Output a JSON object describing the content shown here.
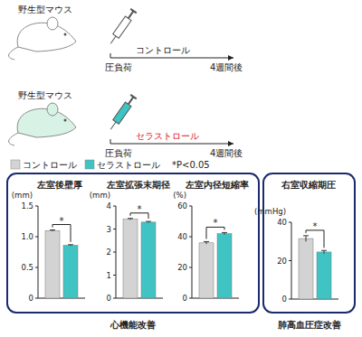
{
  "diagram": {
    "rows": [
      {
        "label": "野生型マウス",
        "treatment": "コントロール",
        "start": "圧負荷",
        "end": "4週間後",
        "color": "#222222"
      },
      {
        "label": "野生型マウス",
        "treatment": "セラストロール",
        "start": "圧負荷",
        "end": "4週間後",
        "color": "#e0201c"
      }
    ]
  },
  "note": "*P<0.05",
  "panels": [
    {
      "caption": "心機能改善"
    },
    {
      "caption": "肺高血圧症改善"
    }
  ],
  "chart_data": [
    {
      "type": "bar",
      "title": "左室後壁厚",
      "y_label": "(mm)",
      "annotation": "*",
      "categories": [
        null
      ],
      "series": [
        {
          "name": "コントロール",
          "color": "#d3d3d3",
          "values": [
            1.1
          ],
          "errors": [
            0.01
          ]
        },
        {
          "name": "セラストロール",
          "color": "#3fc3c3",
          "values": [
            0.86
          ],
          "errors": [
            0.01
          ]
        }
      ],
      "ylim": [
        0,
        1.5
      ],
      "yticks": [
        0,
        0.5,
        {
          "value": 1,
          "label": "1.0"
        },
        1.5
      ]
    },
    {
      "type": "bar",
      "title": "左室拡張末期径",
      "y_label": "(mm)",
      "annotation": "*",
      "categories": [
        null
      ],
      "series": [
        {
          "name": "コントロール",
          "color": "#d3d3d3",
          "values": [
            3.43
          ],
          "errors": [
            0.03
          ]
        },
        {
          "name": "セラストロール",
          "color": "#3fc3c3",
          "values": [
            3.3
          ],
          "errors": [
            0.03
          ]
        }
      ],
      "ylim": [
        0,
        4
      ],
      "yticks": [
        0,
        1,
        2,
        3,
        4
      ]
    },
    {
      "type": "bar",
      "title": "左室内径短縮率",
      "y_label": "(%)",
      "annotation": "*",
      "categories": [
        null
      ],
      "series": [
        {
          "name": "コントロール",
          "color": "#d3d3d3",
          "values": [
            36
          ],
          "errors": [
            0.8
          ]
        },
        {
          "name": "セラストロール",
          "color": "#3fc3c3",
          "values": [
            42
          ],
          "errors": [
            0.7
          ]
        }
      ],
      "ylim": [
        0,
        60
      ],
      "yticks": [
        0,
        20,
        40,
        60
      ]
    },
    {
      "type": "bar",
      "title": "右室収縮期圧",
      "y_label": "(mmHg)",
      "annotation": "*",
      "categories": [
        null
      ],
      "series": [
        {
          "name": "コントロール",
          "color": "#d3d3d3",
          "values": [
            31.5
          ],
          "errors": [
            1.5
          ]
        },
        {
          "name": "セラストロール",
          "color": "#3fc3c3",
          "values": [
            24.5
          ],
          "errors": [
            0.8
          ]
        }
      ],
      "ylim": [
        0,
        40
      ],
      "yticks": [
        0,
        20,
        40
      ]
    }
  ]
}
